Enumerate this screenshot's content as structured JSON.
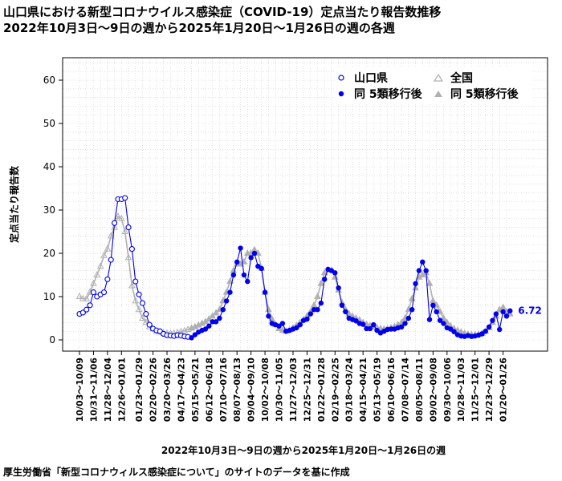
{
  "title_line1": "山口県における新型コロナウイルス感染症（COVID-19）定点当たり報告数推移",
  "title_line2": "2022年10月3日～9日の週から2025年1月20日～1月26日の週の各週",
  "footer": "厚生労働省「新型コロナウィルス感染症について」のサイトのデータを基に作成",
  "colors": {
    "yamaguchi": "#0000ee",
    "national": "#b0b0b0",
    "grid": "#cfcfcf"
  },
  "chart_data": {
    "type": "line",
    "ylabel": "定点当たり報告数",
    "xlabel": "2022年10月3日～9日の週から2025年1月20日～1月26日の週",
    "ylim": [
      -3,
      65
    ],
    "yticks": [
      0,
      10,
      20,
      30,
      40,
      50,
      60
    ],
    "grid": true,
    "legend_position": "top-right",
    "legend": {
      "yamaguchi": "山口県",
      "national": "全国",
      "yamaguchi_post5": "同 5類移行後",
      "national_post5": "同 5類移行後"
    },
    "post5_start_index": 32,
    "x_ticks": [
      {
        "i": 0,
        "label": "10/03～10/09"
      },
      {
        "i": 4,
        "label": "10/31～11/06"
      },
      {
        "i": 8,
        "label": "11/28～12/04"
      },
      {
        "i": 12,
        "label": "12/26～01/01"
      },
      {
        "i": 17,
        "label": "01/23～01/29"
      },
      {
        "i": 21,
        "label": "02/20～02/26"
      },
      {
        "i": 25,
        "label": "03/20～03/26"
      },
      {
        "i": 29,
        "label": "04/17～04/23"
      },
      {
        "i": 33,
        "label": "05/15～05/21"
      },
      {
        "i": 37,
        "label": "06/12～06/18"
      },
      {
        "i": 41,
        "label": "07/10～07/16"
      },
      {
        "i": 45,
        "label": "08/07～08/13"
      },
      {
        "i": 49,
        "label": "09/04～09/10"
      },
      {
        "i": 53,
        "label": "10/02～10/08"
      },
      {
        "i": 57,
        "label": "10/30～11/05"
      },
      {
        "i": 61,
        "label": "11/27～12/03"
      },
      {
        "i": 65,
        "label": "12/25～12/31"
      },
      {
        "i": 69,
        "label": "01/22～01/28"
      },
      {
        "i": 73,
        "label": "02/19～02/25"
      },
      {
        "i": 77,
        "label": "03/18～03/24"
      },
      {
        "i": 81,
        "label": "04/15～04/21"
      },
      {
        "i": 85,
        "label": "05/13～05/19"
      },
      {
        "i": 89,
        "label": "06/10～06/16"
      },
      {
        "i": 93,
        "label": "07/08～07/14"
      },
      {
        "i": 97,
        "label": "08/05～08/11"
      },
      {
        "i": 101,
        "label": "09/02～09/08"
      },
      {
        "i": 105,
        "label": "09/30～10/06"
      },
      {
        "i": 109,
        "label": "10/28～11/03"
      },
      {
        "i": 113,
        "label": "11/25～12/01"
      },
      {
        "i": 117,
        "label": "12/23～12/29"
      },
      {
        "i": 121,
        "label": "01/20～01/26"
      }
    ],
    "series": [
      {
        "name": "山口県",
        "values": [
          6.0,
          6.3,
          7.0,
          8.0,
          11.0,
          10.0,
          10.5,
          11.0,
          14.0,
          18.5,
          27.0,
          32.5,
          32.5,
          32.8,
          26.0,
          21.0,
          13.5,
          10.5,
          8.5,
          6.0,
          3.5,
          2.6,
          2.2,
          2.0,
          1.4,
          1.1,
          1.0,
          0.9,
          1.1,
          1.0,
          0.8,
          0.7,
          0.5,
          1.2,
          1.8,
          2.2,
          2.5,
          3.2,
          4.2,
          4.2,
          5.0,
          7.0,
          9.0,
          11.0,
          15.0,
          18.0,
          21.2,
          15.0,
          13.5,
          19.0,
          20.0,
          17.0,
          16.5,
          11.0,
          5.5,
          3.8,
          3.5,
          3.2,
          3.8,
          2.0,
          2.2,
          2.5,
          2.8,
          3.5,
          4.5,
          4.8,
          6.0,
          7.0,
          7.0,
          8.5,
          14.0,
          16.3,
          16.0,
          15.5,
          12.0,
          8.0,
          6.5,
          5.0,
          4.7,
          4.4,
          3.8,
          3.6,
          2.6,
          2.6,
          3.5,
          2.2,
          1.6,
          2.0,
          2.4,
          2.5,
          2.5,
          2.8,
          3.0,
          3.8,
          5.0,
          7.0,
          13.0,
          16.0,
          18.0,
          16.0,
          4.7,
          8.0,
          6.5,
          4.5,
          3.8,
          2.8,
          2.5,
          1.9,
          1.2,
          0.9,
          0.8,
          1.0,
          0.8,
          0.9,
          1.1,
          1.4,
          2.0,
          3.0,
          4.5,
          6.0,
          2.4,
          6.5,
          5.5,
          6.72
        ]
      },
      {
        "name": "全国",
        "values": [
          10.0,
          9.5,
          9.5,
          11.0,
          13.0,
          15.0,
          17.0,
          19.5,
          21.0,
          24.0,
          26.0,
          28.5,
          28.0,
          25.0,
          19.0,
          12.5,
          9.0,
          7.0,
          5.0,
          4.0,
          3.0,
          2.5,
          2.0,
          1.8,
          1.6,
          1.5,
          1.5,
          1.5,
          1.7,
          1.9,
          2.1,
          2.4,
          2.7,
          3.0,
          3.4,
          3.8,
          4.2,
          4.8,
          5.5,
          6.2,
          7.0,
          9.0,
          11.0,
          13.5,
          16.0,
          17.5,
          17.5,
          18.0,
          20.0,
          20.0,
          20.8,
          20.0,
          16.5,
          11.0,
          7.0,
          4.8,
          3.5,
          2.6,
          2.2,
          2.0,
          2.3,
          2.8,
          3.3,
          4.0,
          4.7,
          5.5,
          6.5,
          8.0,
          10.0,
          13.0,
          15.5,
          16.2,
          16.1,
          14.5,
          11.5,
          8.6,
          7.0,
          6.0,
          5.5,
          5.0,
          4.6,
          4.0,
          3.6,
          3.3,
          3.0,
          2.8,
          2.6,
          2.5,
          2.6,
          2.8,
          3.1,
          3.5,
          4.0,
          5.0,
          7.0,
          9.5,
          12.0,
          14.5,
          15.0,
          15.5,
          13.0,
          9.0,
          8.0,
          6.5,
          5.0,
          4.0,
          3.2,
          2.6,
          2.2,
          1.8,
          1.5,
          1.3,
          1.2,
          1.2,
          1.3,
          1.5,
          2.0,
          2.8,
          4.0,
          5.5,
          7.0,
          7.5,
          6.5,
          6.0
        ]
      }
    ],
    "last_value_label": "6.72"
  }
}
